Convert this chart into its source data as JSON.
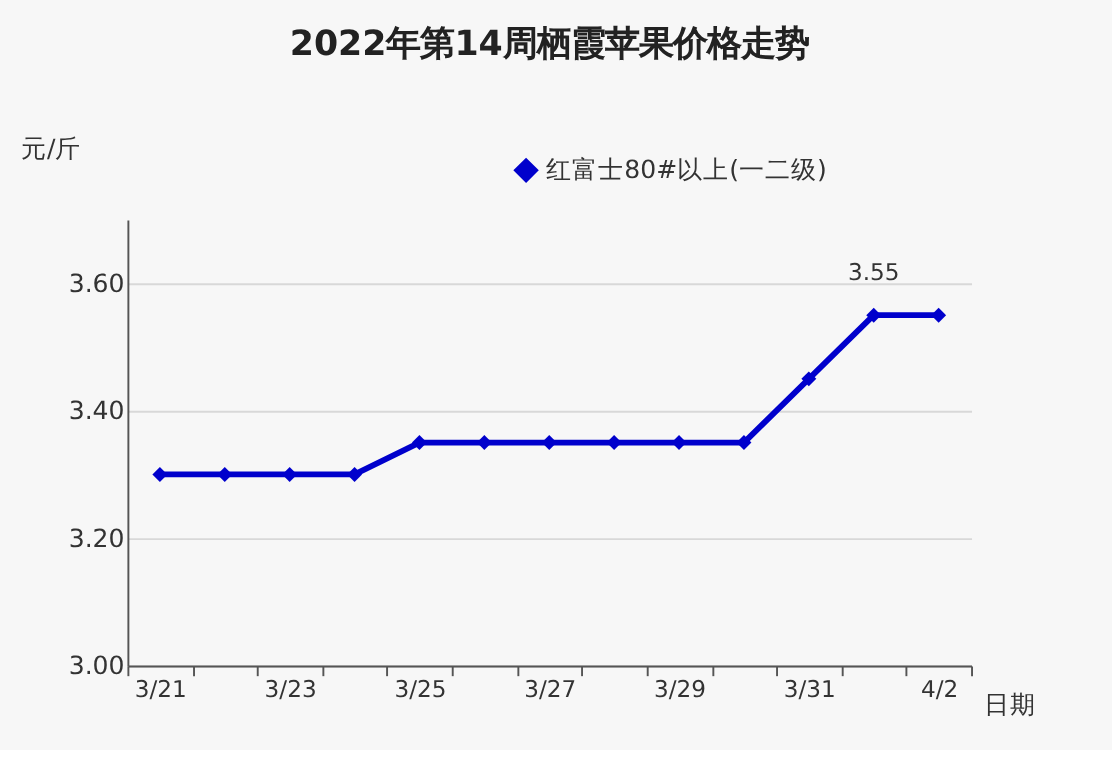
{
  "chart_data": {
    "type": "line",
    "title": "2022年第14周栖霞苹果价格走势",
    "xlabel": "日期",
    "ylabel": "元/斤",
    "categories": [
      "3/21",
      null,
      "3/23",
      null,
      "3/25",
      null,
      "3/27",
      null,
      "3/29",
      null,
      "3/31",
      null,
      "4/2"
    ],
    "series": [
      {
        "name": "红富士80#以上(一二级)",
        "color": "#0000cc",
        "values": [
          3.3,
          3.3,
          3.3,
          3.3,
          3.35,
          3.35,
          3.35,
          3.35,
          3.35,
          3.35,
          3.45,
          3.55,
          3.55
        ],
        "value_labels": [
          null,
          null,
          null,
          null,
          null,
          null,
          null,
          null,
          null,
          null,
          null,
          "3.55",
          null
        ]
      }
    ],
    "ylim": [
      3.0,
      3.7
    ],
    "yticks": [
      {
        "value": 3.0,
        "label": "3.00"
      },
      {
        "value": 3.2,
        "label": "3.20"
      },
      {
        "value": 3.4,
        "label": "3.40"
      },
      {
        "value": 3.6,
        "label": "3.60"
      }
    ],
    "grid": "y",
    "legend": "top right",
    "marker": "diamond",
    "line_style": "solid"
  }
}
